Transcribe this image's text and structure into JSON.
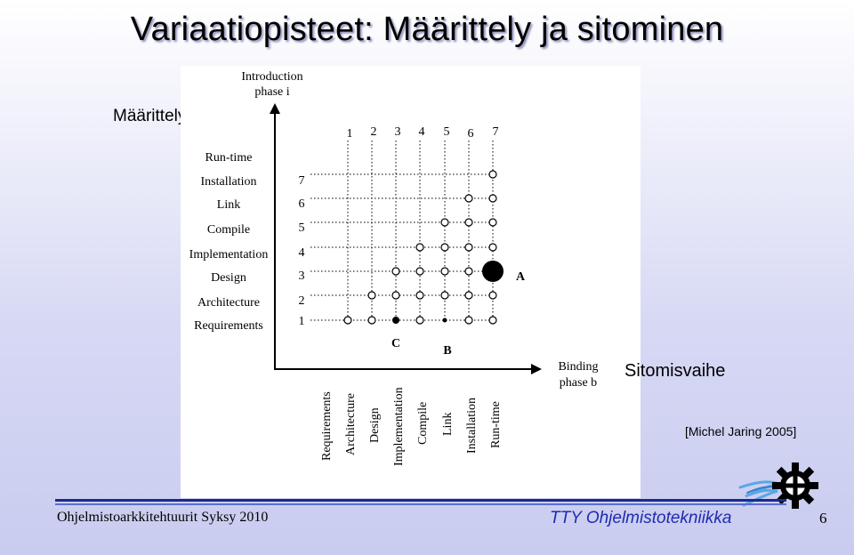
{
  "title": "Variaatiopisteet: Määrittely ja sitominen",
  "labels": {
    "definition_phase": "Määrittelyvaihe",
    "binding_phase": "Sitomisvaihe",
    "citation": "[Michel Jaring 2005]"
  },
  "diagram": {
    "y_axis_title": [
      "Introduction",
      "phase i"
    ],
    "x_axis_title": [
      "Binding",
      "phase b"
    ],
    "column_numbers": [
      "1",
      "2",
      "3",
      "4",
      "5",
      "6",
      "7"
    ],
    "row_numbers": [
      "1",
      "2",
      "3",
      "4",
      "5",
      "6",
      "7"
    ],
    "row_labels": [
      "Requirements",
      "Architecture",
      "Design",
      "Implementation",
      "Compile",
      "Link",
      "Installation",
      "Run-time"
    ],
    "column_labels": [
      "Requirements",
      "Architecture",
      "Design",
      "Implementation",
      "Compile",
      "Link",
      "Installation",
      "Run-time"
    ],
    "point_labels": {
      "A": "A",
      "B": "B",
      "C": "C"
    }
  },
  "footer": {
    "course": "Ohjelmistoarkkitehtuurit Syksy 2010",
    "organization": "TTY Ohjelmistotekniikka",
    "page": "6"
  },
  "logo_icon": "gear-logo-icon",
  "colors": {
    "title_shadow": "#8c8fb8",
    "footer_accent": "#1e2bb0",
    "background": "#c9ccef"
  }
}
